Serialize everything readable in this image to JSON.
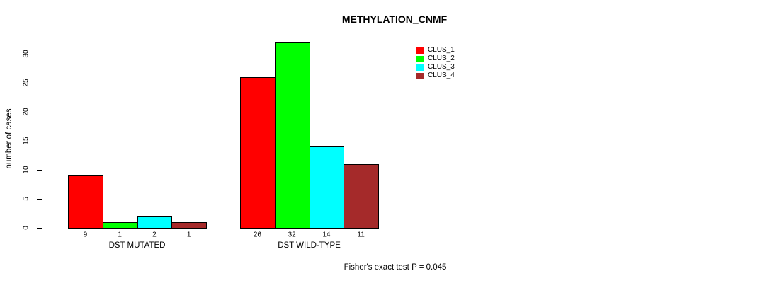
{
  "title": "METHYLATION_CNMF",
  "annotation": "Fisher's exact test P = 0.045",
  "chart_data": {
    "type": "bar",
    "title": "METHYLATION_CNMF",
    "xlabel": "",
    "ylabel": "number of cases",
    "ylim": [
      0,
      30
    ],
    "yticks": [
      0,
      5,
      10,
      15,
      20,
      25,
      30
    ],
    "grid": false,
    "legend_position": "top-right",
    "categories": [
      "DST MUTATED",
      "DST WILD-TYPE"
    ],
    "series": [
      {
        "name": "CLUS_1",
        "color": "#FF0000",
        "values": [
          9,
          26
        ]
      },
      {
        "name": "CLUS_2",
        "color": "#00FF00",
        "values": [
          1,
          32
        ]
      },
      {
        "name": "CLUS_3",
        "color": "#00FFFF",
        "values": [
          2,
          14
        ]
      },
      {
        "name": "CLUS_4",
        "color": "#A52A2A",
        "values": [
          1,
          11
        ]
      }
    ],
    "bar_labels": [
      [
        "9",
        "1",
        "2",
        "1"
      ],
      [
        "26",
        "32",
        "14",
        "11"
      ]
    ],
    "annotation": "Fisher's exact test P = 0.045"
  },
  "colors": {
    "background": "#FFFFFF",
    "axis": "#000000",
    "text": "#000000"
  }
}
